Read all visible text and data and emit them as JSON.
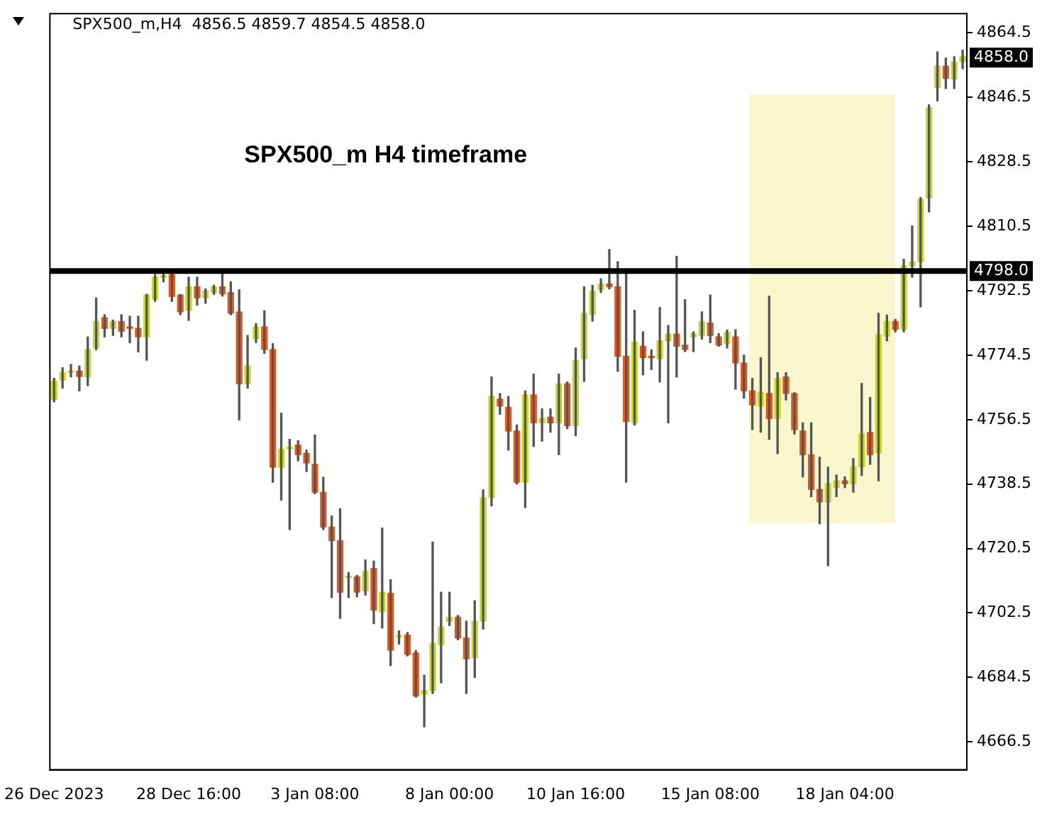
{
  "chart_data": {
    "type": "candlestick",
    "title": "SPX500_m,H4  4856.5 4859.7 4854.5 4858.0",
    "annotations": [
      "SPX500_m H4 timeframe",
      "4858.0"
    ],
    "categories": [
      "26 Dec 2023",
      null,
      null,
      null,
      null,
      null,
      null,
      null,
      null,
      null,
      null,
      null,
      null,
      null,
      null,
      null,
      "28 Dec 16:00",
      null,
      null,
      null,
      null,
      null,
      null,
      null,
      null,
      null,
      null,
      null,
      null,
      null,
      null,
      "3 Jan 08:00",
      null,
      null,
      null,
      null,
      null,
      null,
      null,
      null,
      null,
      null,
      null,
      null,
      null,
      null,
      null,
      "8 Jan 00:00",
      null,
      null,
      null,
      null,
      null,
      null,
      null,
      null,
      null,
      null,
      null,
      null,
      null,
      null,
      "10 Jan 16:00",
      null,
      null,
      null,
      null,
      null,
      null,
      null,
      null,
      null,
      null,
      null,
      null,
      null,
      null,
      null,
      "15 Jan 08:00",
      null,
      null,
      null,
      null,
      null,
      null,
      null,
      null,
      null,
      null,
      null,
      null,
      null,
      null,
      null,
      "18 Jan 04:00",
      null,
      null,
      null,
      null,
      null,
      null,
      null,
      null,
      null,
      null,
      null,
      null,
      null,
      null
    ],
    "ohlc": [
      [
        4762.2,
        4768,
        4761.5,
        4767.2
      ],
      [
        4767.6,
        4771,
        4765.3,
        4769.6
      ],
      [
        4769.7,
        4771.9,
        4768.4,
        4769.9
      ],
      [
        4770.1,
        4771.5,
        4764.5,
        4768.5
      ],
      [
        4768.4,
        4779.6,
        4766,
        4776.1
      ],
      [
        4776.5,
        4790.5,
        4776,
        4783.9
      ],
      [
        4785,
        4785.8,
        4779.6,
        4782
      ],
      [
        4782,
        4784.3,
        4780,
        4783.9
      ],
      [
        4783.9,
        4785.8,
        4779.6,
        4781.2
      ],
      [
        4782.2,
        4785.4,
        4778,
        4782
      ],
      [
        4782,
        4785.4,
        4775.4,
        4779.6
      ],
      [
        4779.6,
        4791.5,
        4773.1,
        4791.3
      ],
      [
        4790.1,
        4797,
        4789.5,
        4796.3
      ],
      [
        4796.3,
        4797.5,
        4795,
        4796.7
      ],
      [
        4797,
        4798.5,
        4789.5,
        4790.9
      ],
      [
        4791.3,
        4791.5,
        4785.8,
        4786.6
      ],
      [
        4787,
        4796.3,
        4784.2,
        4793.6
      ],
      [
        4793.6,
        4796.3,
        4788.5,
        4790.5
      ],
      [
        4790.5,
        4793,
        4789,
        4792.4
      ],
      [
        4792,
        4794,
        4791.5,
        4793.6
      ],
      [
        4793.6,
        4797.5,
        4791,
        4791.6
      ],
      [
        4792,
        4795,
        4785.8,
        4786.2
      ],
      [
        4786.6,
        4792.8,
        4756.4,
        4766.5
      ],
      [
        4766.5,
        4780,
        4765.3,
        4771.5
      ],
      [
        4779.1,
        4783.3,
        4778,
        4782.4
      ],
      [
        4782.4,
        4786.9,
        4775,
        4776.1
      ],
      [
        4776.1,
        4777.7,
        4739,
        4743.2
      ],
      [
        4743.2,
        4758.3,
        4734,
        4748.2
      ],
      [
        4748.4,
        4751,
        4725.8,
        4748.6
      ],
      [
        4749.4,
        4750.6,
        4745,
        4746.7
      ],
      [
        4747.1,
        4748,
        4742,
        4744.4
      ],
      [
        4744,
        4752.2,
        4735.8,
        4736.2
      ],
      [
        4736.2,
        4740.4,
        4725.8,
        4726.5
      ],
      [
        4726.5,
        4729.6,
        4706.8,
        4722.7
      ],
      [
        4722.7,
        4731.6,
        4701,
        4708.3
      ],
      [
        4712.4,
        4713.8,
        4706.8,
        4712.6
      ],
      [
        4712.6,
        4713,
        4707,
        4708.3
      ],
      [
        4708.7,
        4717.3,
        4707.5,
        4714.2
      ],
      [
        4714.9,
        4717,
        4699.5,
        4703.3
      ],
      [
        4702.9,
        4726.2,
        4698.3,
        4708.3
      ],
      [
        4708,
        4711.8,
        4687.8,
        4692.1
      ],
      [
        4695.8,
        4697.5,
        4693.8,
        4696
      ],
      [
        4696.3,
        4697,
        4690.5,
        4690.9
      ],
      [
        4691.3,
        4692,
        4679,
        4679.3
      ],
      [
        4679.7,
        4685.1,
        4670.7,
        4680.8
      ],
      [
        4680.8,
        4722.3,
        4680,
        4694
      ],
      [
        4693.6,
        4708.3,
        4683,
        4698.6
      ],
      [
        4700.1,
        4708.3,
        4699,
        4701.3
      ],
      [
        4701.3,
        4701.8,
        4695,
        4695.5
      ],
      [
        4695.5,
        4700.2,
        4680,
        4689.7
      ],
      [
        4690,
        4705.9,
        4684.5,
        4700.2
      ],
      [
        4700.2,
        4736.9,
        4698,
        4734.7
      ],
      [
        4734.7,
        4768.4,
        4732.4,
        4763
      ],
      [
        4762.2,
        4763.8,
        4758,
        4760.3
      ],
      [
        4759.9,
        4763,
        4748,
        4753.3
      ],
      [
        4753.3,
        4755,
        4738.5,
        4739
      ],
      [
        4739,
        4764.5,
        4732,
        4763.4
      ],
      [
        4763.4,
        4769.2,
        4749,
        4755.6
      ],
      [
        4755.6,
        4759.5,
        4750.5,
        4756.8
      ],
      [
        4757.2,
        4759.5,
        4753,
        4755.6
      ],
      [
        4755.6,
        4769.2,
        4746.7,
        4766.5
      ],
      [
        4766.5,
        4767,
        4754,
        4754.8
      ],
      [
        4754.8,
        4776.5,
        4752,
        4773
      ],
      [
        4773.5,
        4793.6,
        4767.2,
        4786.2
      ],
      [
        4785.8,
        4794,
        4784,
        4792.4
      ],
      [
        4792.8,
        4795.8,
        4792,
        4794.4
      ],
      [
        4794.4,
        4804,
        4793,
        4793.6
      ],
      [
        4793.6,
        4800.6,
        4770,
        4774.2
      ],
      [
        4774.2,
        4797.9,
        4739,
        4756
      ],
      [
        4755.6,
        4787,
        4755,
        4778.1
      ],
      [
        4777,
        4781,
        4769,
        4773.8
      ],
      [
        4774.2,
        4776,
        4770.5,
        4773.8
      ],
      [
        4773.5,
        4787.8,
        4767,
        4778.5
      ],
      [
        4778.5,
        4782.8,
        4755.6,
        4780.4
      ],
      [
        4780.4,
        4802.1,
        4768.4,
        4777
      ],
      [
        4777.3,
        4790,
        4775.5,
        4776.1
      ],
      [
        4779.6,
        4781,
        4775.5,
        4780.4
      ],
      [
        4780,
        4786.6,
        4779,
        4783.9
      ],
      [
        4783.5,
        4791.3,
        4778,
        4780
      ],
      [
        4779.6,
        4780.5,
        4777,
        4777.3
      ],
      [
        4777.7,
        4781.5,
        4776.5,
        4780.8
      ],
      [
        4779.6,
        4781.6,
        4765,
        4772.3
      ],
      [
        4772.3,
        4774.5,
        4762.5,
        4764.5
      ],
      [
        4764.5,
        4768,
        4753.7,
        4760.6
      ],
      [
        4760.3,
        4773.8,
        4753,
        4764.2
      ],
      [
        4763.8,
        4791,
        4751,
        4756.8
      ],
      [
        4756.8,
        4769.6,
        4747,
        4768
      ],
      [
        4768.4,
        4769.6,
        4762,
        4763.8
      ],
      [
        4763.8,
        4764,
        4752.5,
        4753.7
      ],
      [
        4753.3,
        4755.6,
        4740.5,
        4746.7
      ],
      [
        4746.7,
        4755.6,
        4735,
        4737
      ],
      [
        4737,
        4746,
        4727.4,
        4733.5
      ],
      [
        4733.5,
        4743.2,
        4715.7,
        4738.6
      ],
      [
        4737.5,
        4741,
        4735,
        4739.4
      ],
      [
        4739.4,
        4740.5,
        4737.5,
        4738.6
      ],
      [
        4738.6,
        4745.6,
        4736.2,
        4743.3
      ],
      [
        4743.3,
        4766.6,
        4740.9,
        4752.5
      ],
      [
        4752.9,
        4762.7,
        4744,
        4746.7
      ],
      [
        4747.2,
        4786.2,
        4739.4,
        4780.2
      ],
      [
        4779.8,
        4785.7,
        4778.5,
        4783.9
      ],
      [
        4783.9,
        4784.5,
        4781,
        4781.7
      ],
      [
        4781.7,
        4801.3,
        4781,
        4799.4
      ],
      [
        4799.4,
        4810.6,
        4796.3,
        4800.5
      ],
      [
        4800.5,
        4818.5,
        4788,
        4818
      ],
      [
        4818.4,
        4844.4,
        4814.5,
        4843.6
      ],
      [
        4849.3,
        4859.2,
        4845.5,
        4855.3
      ],
      [
        4855.2,
        4857.5,
        4849,
        4851.8
      ],
      [
        4851.6,
        4857.9,
        4849,
        4856.4
      ],
      [
        4856.5,
        4859.7,
        4854.5,
        4858
      ]
    ],
    "colors": [
      "#c8d92b",
      "#c8d92b",
      "#c8d92b",
      "#e8581c",
      "#c8d92b",
      "#c8d92b",
      "#e8581c",
      "#c8d92b",
      "#e8581c",
      "#e8581c",
      "#e8581c",
      "#c8d92b",
      "#c8d92b",
      "#c8d92b",
      "#e8581c",
      "#e8581c",
      "#c8d92b",
      "#e8581c",
      "#c8d92b",
      "#c8d92b",
      "#e8581c",
      "#e8581c",
      "#e8581c",
      "#c8d92b",
      "#c8d92b",
      "#e8581c",
      "#e8581c",
      "#c8d92b",
      "#c8d92b",
      "#e8581c",
      "#e8581c",
      "#e8581c",
      "#e8581c",
      "#e8581c",
      "#e8581c",
      "#c8d92b",
      "#e8581c",
      "#c8d92b",
      "#e8581c",
      "#c8d92b",
      "#e8581c",
      "#c8d92b",
      "#e8581c",
      "#e8581c",
      "#c8d92b",
      "#c8d92b",
      "#c8d92b",
      "#c8d92b",
      "#e8581c",
      "#e8581c",
      "#c8d92b",
      "#c8d92b",
      "#c8d92b",
      "#e8581c",
      "#e8581c",
      "#e8581c",
      "#c8d92b",
      "#e8581c",
      "#c8d92b",
      "#e8581c",
      "#c8d92b",
      "#e8581c",
      "#c8d92b",
      "#c8d92b",
      "#c8d92b",
      "#c8d92b",
      "#e8581c",
      "#e8581c",
      "#e8581c",
      "#c8d92b",
      "#e8581c",
      "#e8581c",
      "#c8d92b",
      "#c8d92b",
      "#e8581c",
      "#e8581c",
      "#c8d92b",
      "#c8d92b",
      "#e8581c",
      "#e8581c",
      "#c8d92b",
      "#e8581c",
      "#e8581c",
      "#e8581c",
      "#c8d92b",
      "#e8581c",
      "#c8d92b",
      "#e8581c",
      "#e8581c",
      "#e8581c",
      "#e8581c",
      "#e8581c",
      "#c8d92b",
      "#c8d92b",
      "#e8581c",
      "#c8d92b",
      "#c8d92b",
      "#e8581c",
      "#c8d92b",
      "#c8d92b",
      "#e8581c",
      "#c8d92b",
      "#c8d92b",
      "#c8d92b",
      "#c8d92b",
      "#c8d92b",
      "#e8581c",
      "#c8d92b",
      "#c8d92b"
    ],
    "ylim": [
      4658.7,
      4869.9
    ],
    "yticks": [
      4666.5,
      4684.5,
      4702.5,
      4720.5,
      4738.5,
      4756.5,
      4774.5,
      4792.5,
      4810.5,
      4828.5,
      4846.5,
      4864.5
    ],
    "ref_lines": [
      {
        "axis": "y",
        "value": 4798,
        "label": "4798.0",
        "color": "#000000"
      }
    ],
    "grid": false,
    "legend": false
  }
}
